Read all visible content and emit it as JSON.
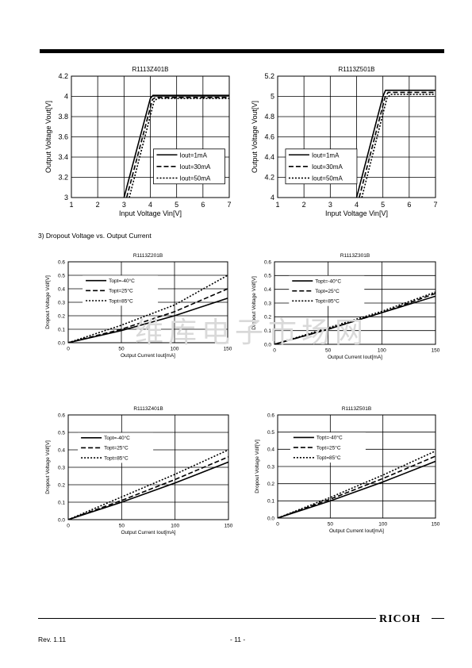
{
  "section_heading": "3) Dropout Voltage vs. Output Current",
  "watermark": "维库电子市场网",
  "footer": {
    "revision": "Rev. 1.11",
    "page": "- 11 -",
    "logo": "RICOH"
  },
  "chart_data": [
    {
      "type": "line",
      "title": "R1113Z401B",
      "xlabel": "Input Voltage Vin[V]",
      "ylabel": "Output Voltage Vout[V]",
      "xlim": [
        1,
        7
      ],
      "ylim": [
        3,
        4.2
      ],
      "xticks": [
        "1",
        "2",
        "3",
        "4",
        "5",
        "6",
        "7"
      ],
      "yticks": [
        "3",
        "3.2",
        "3.4",
        "3.6",
        "3.8",
        "4",
        "4.2"
      ],
      "grid": true,
      "legend_position": "lower-right",
      "series": [
        {
          "name": "Iout=1mA",
          "style": "solid",
          "x": [
            3.0,
            4.0,
            4.1,
            7.0
          ],
          "y": [
            3.0,
            3.98,
            4.01,
            4.01
          ]
        },
        {
          "name": "Iout=30mA",
          "style": "dashed",
          "x": [
            3.1,
            4.08,
            4.2,
            7.0
          ],
          "y": [
            3.0,
            3.97,
            3.99,
            3.99
          ]
        },
        {
          "name": "Iout=50mA",
          "style": "dotted",
          "x": [
            3.2,
            4.15,
            4.3,
            7.0
          ],
          "y": [
            3.0,
            3.96,
            3.98,
            3.98
          ]
        }
      ]
    },
    {
      "type": "line",
      "title": "R1113Z501B",
      "xlabel": "Input Voltage Vin[V]",
      "ylabel": "Output Voltage Vout[V]",
      "xlim": [
        1,
        7
      ],
      "ylim": [
        4,
        5.2
      ],
      "xticks": [
        "1",
        "2",
        "3",
        "4",
        "5",
        "6",
        "7"
      ],
      "yticks": [
        "4",
        "4.2",
        "4.4",
        "4.6",
        "4.8",
        "5",
        "5.2"
      ],
      "grid": true,
      "legend_position": "lower-left",
      "series": [
        {
          "name": "Iout=1mA",
          "style": "solid",
          "x": [
            4.0,
            5.0,
            5.1,
            7.0
          ],
          "y": [
            4.0,
            5.0,
            5.06,
            5.06
          ]
        },
        {
          "name": "Iout=30mA",
          "style": "dashed",
          "x": [
            4.1,
            5.08,
            5.2,
            7.0
          ],
          "y": [
            4.0,
            4.99,
            5.04,
            5.04
          ]
        },
        {
          "name": "Iout=50mA",
          "style": "dotted",
          "x": [
            4.2,
            5.15,
            5.3,
            7.0
          ],
          "y": [
            4.0,
            4.98,
            5.02,
            5.02
          ]
        }
      ]
    },
    {
      "type": "line",
      "title": "R1113Z201B",
      "xlabel": "Output Current Iout[mA]",
      "ylabel": "Dropout Voltage Vdif[V]",
      "xlim": [
        0,
        150
      ],
      "ylim": [
        0,
        0.6
      ],
      "xticks": [
        "0",
        "50",
        "100",
        "150"
      ],
      "yticks": [
        "0.0",
        "0.1",
        "0.2",
        "0.3",
        "0.4",
        "0.5",
        "0.6"
      ],
      "grid": true,
      "legend_position": "top-left",
      "series": [
        {
          "name": "Topt=-40°C",
          "style": "solid",
          "x": [
            0,
            50,
            100,
            150
          ],
          "y": [
            0,
            0.09,
            0.2,
            0.33
          ]
        },
        {
          "name": "Topt=25°C",
          "style": "dashed",
          "x": [
            0,
            50,
            100,
            150
          ],
          "y": [
            0,
            0.1,
            0.23,
            0.4
          ]
        },
        {
          "name": "Topt=85°C",
          "style": "dotted",
          "x": [
            0,
            50,
            100,
            150
          ],
          "y": [
            0,
            0.13,
            0.28,
            0.5
          ]
        }
      ]
    },
    {
      "type": "line",
      "title": "R1113Z301B",
      "xlabel": "Output Current Iout[mA]",
      "ylabel": "Dropout Voltage Vdif[V]",
      "xlim": [
        0,
        150
      ],
      "ylim": [
        0,
        0.6
      ],
      "xticks": [
        "0",
        "50",
        "100",
        "150"
      ],
      "yticks": [
        "0.0",
        "0.1",
        "0.2",
        "0.3",
        "0.4",
        "0.5",
        "0.6"
      ],
      "grid": true,
      "legend_position": "top-left",
      "series": [
        {
          "name": "Topt=-40°C",
          "style": "solid",
          "x": [
            0,
            50,
            100,
            150
          ],
          "y": [
            0,
            0.11,
            0.23,
            0.35
          ]
        },
        {
          "name": "Topt=25°C",
          "style": "dashed",
          "x": [
            0,
            50,
            100,
            150
          ],
          "y": [
            0,
            0.11,
            0.23,
            0.37
          ]
        },
        {
          "name": "Topt=85°C",
          "style": "dotted",
          "x": [
            0,
            50,
            100,
            150
          ],
          "y": [
            0,
            0.12,
            0.24,
            0.38
          ]
        }
      ]
    },
    {
      "type": "line",
      "title": "R1113Z401B",
      "xlabel": "Output Current Iout[mA]",
      "ylabel": "Dropout Voltage Vdif[V]",
      "xlim": [
        0,
        150
      ],
      "ylim": [
        0,
        0.6
      ],
      "xticks": [
        "0",
        "50",
        "100",
        "150"
      ],
      "yticks": [
        "0.0",
        "0.1",
        "0.2",
        "0.3",
        "0.4",
        "0.5",
        "0.6"
      ],
      "grid": true,
      "legend_position": "top-left",
      "series": [
        {
          "name": "Topt=-40°C",
          "style": "solid",
          "x": [
            0,
            50,
            100,
            150
          ],
          "y": [
            0,
            0.1,
            0.21,
            0.33
          ]
        },
        {
          "name": "Topt=25°C",
          "style": "dashed",
          "x": [
            0,
            50,
            100,
            150
          ],
          "y": [
            0,
            0.11,
            0.23,
            0.36
          ]
        },
        {
          "name": "Topt=85°C",
          "style": "dotted",
          "x": [
            0,
            50,
            100,
            150
          ],
          "y": [
            0,
            0.13,
            0.26,
            0.4
          ]
        }
      ]
    },
    {
      "type": "line",
      "title": "R1113Z501B",
      "xlabel": "Output Current Iout[mA]",
      "ylabel": "Dropout Voltage Vdif[V]",
      "xlim": [
        0,
        150
      ],
      "ylim": [
        0,
        0.6
      ],
      "xticks": [
        "0",
        "50",
        "100",
        "150"
      ],
      "yticks": [
        "0.0",
        "0.1",
        "0.2",
        "0.3",
        "0.4",
        "0.5",
        "0.6"
      ],
      "grid": true,
      "legend_position": "top-left",
      "series": [
        {
          "name": "Topt=-40°C",
          "style": "solid",
          "x": [
            0,
            50,
            100,
            150
          ],
          "y": [
            0,
            0.1,
            0.21,
            0.33
          ]
        },
        {
          "name": "Topt=25°C",
          "style": "dashed",
          "x": [
            0,
            50,
            100,
            150
          ],
          "y": [
            0,
            0.11,
            0.23,
            0.36
          ]
        },
        {
          "name": "Topt=85°C",
          "style": "dotted",
          "x": [
            0,
            50,
            100,
            150
          ],
          "y": [
            0,
            0.12,
            0.25,
            0.39
          ]
        }
      ]
    }
  ]
}
